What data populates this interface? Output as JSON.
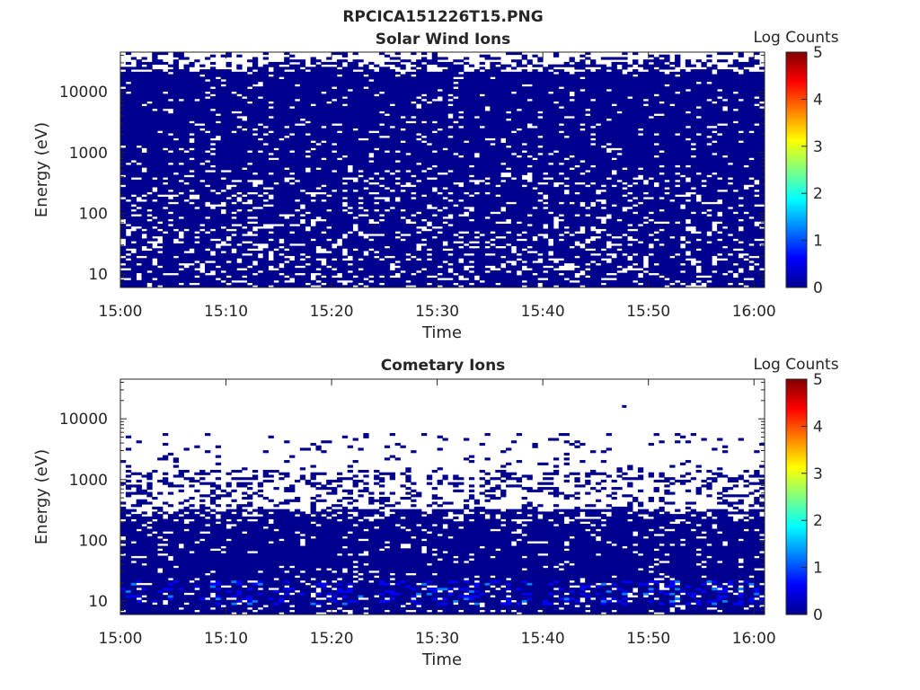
{
  "figure_title": "RPCICA151226T15.PNG",
  "colormap": [
    "#00008f",
    "#0000ff",
    "#0080ff",
    "#00ffff",
    "#80ff80",
    "#ffff00",
    "#ff8000",
    "#ff0000",
    "#800000"
  ],
  "chart_data": [
    {
      "type": "heatmap",
      "title": "Solar Wind Ions",
      "xlabel": "Time",
      "ylabel": "Energy (eV)",
      "x_ticks": [
        "15:00",
        "15:10",
        "15:20",
        "15:30",
        "15:40",
        "15:50",
        "16:00"
      ],
      "x_range": [
        "15:00",
        "16:01"
      ],
      "y_scale": "log",
      "y_ticks": [
        "10",
        "100",
        "1000",
        "10000"
      ],
      "y_range": [
        6,
        45000
      ],
      "colorbar": {
        "label": "Log Counts",
        "range": [
          0,
          5
        ],
        "ticks": [
          "0",
          "1",
          "2",
          "3",
          "4",
          "5"
        ]
      },
      "dominant_log_counts": 0.1,
      "coverage": "near-continuous low counts across 6 eV – 30 keV with scattered gaps, denser below 100 eV gaps"
    },
    {
      "type": "heatmap",
      "title": "Cometary Ions",
      "xlabel": "Time",
      "ylabel": "Energy (eV)",
      "x_ticks": [
        "15:00",
        "15:10",
        "15:20",
        "15:30",
        "15:40",
        "15:50",
        "16:00"
      ],
      "x_range": [
        "15:00",
        "16:01"
      ],
      "y_scale": "log",
      "y_ticks": [
        "10",
        "100",
        "1000",
        "10000"
      ],
      "y_range": [
        6,
        45000
      ],
      "colorbar": {
        "label": "Log Counts",
        "range": [
          0,
          5
        ],
        "ticks": [
          "0",
          "1",
          "2",
          "3",
          "4",
          "5"
        ]
      },
      "dominant_log_counts": 0.1,
      "coverage": "dense low counts below ~300 eV, sparse bins up to ~5 keV, brighter (log counts ~0.6–1) near 10–20 eV"
    }
  ]
}
